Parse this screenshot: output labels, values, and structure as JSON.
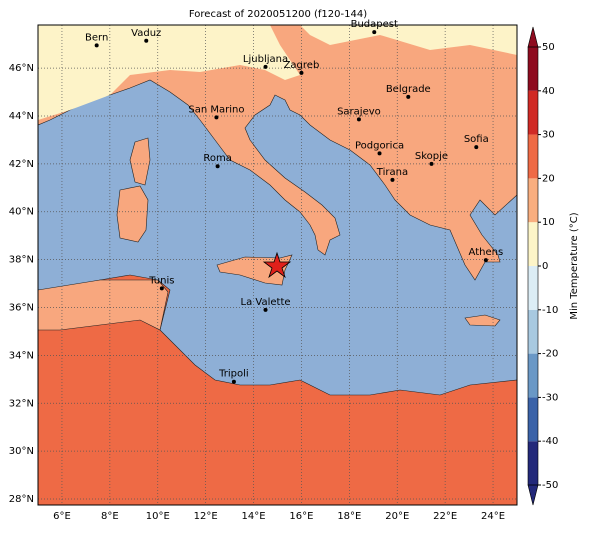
{
  "title": "Forecast of 2020051200 (f120-144)",
  "map": {
    "xlim": [
      5,
      25
    ],
    "ylim": [
      27.75,
      47.8
    ],
    "xticks": [
      {
        "value": 6,
        "label": "6°E"
      },
      {
        "value": 8,
        "label": "8°E"
      },
      {
        "value": 10,
        "label": "10°E"
      },
      {
        "value": 12,
        "label": "12°E"
      },
      {
        "value": 14,
        "label": "14°E"
      },
      {
        "value": 16,
        "label": "16°E"
      },
      {
        "value": 18,
        "label": "18°E"
      },
      {
        "value": 20,
        "label": "20°E"
      },
      {
        "value": 22,
        "label": "22°E"
      },
      {
        "value": 24,
        "label": "24°E"
      }
    ],
    "yticks": [
      {
        "value": 28,
        "label": "28°N"
      },
      {
        "value": 30,
        "label": "30°N"
      },
      {
        "value": 32,
        "label": "32°N"
      },
      {
        "value": 34,
        "label": "34°N"
      },
      {
        "value": 36,
        "label": "36°N"
      },
      {
        "value": 38,
        "label": "38°N"
      },
      {
        "value": 40,
        "label": "40°N"
      },
      {
        "value": 42,
        "label": "42°N"
      },
      {
        "value": 44,
        "label": "44°N"
      },
      {
        "value": 46,
        "label": "46°N"
      }
    ],
    "cities": [
      {
        "name": "Bern",
        "lon": 7.45,
        "lat": 46.95
      },
      {
        "name": "Vaduz",
        "lon": 9.52,
        "lat": 47.14
      },
      {
        "name": "Budapest",
        "lon": 19.04,
        "lat": 47.5
      },
      {
        "name": "Ljubljana",
        "lon": 14.5,
        "lat": 46.05
      },
      {
        "name": "Zagreb",
        "lon": 16.0,
        "lat": 45.8
      },
      {
        "name": "Belgrade",
        "lon": 20.46,
        "lat": 44.8
      },
      {
        "name": "San Marino",
        "lon": 12.45,
        "lat": 43.94
      },
      {
        "name": "Sarajevo",
        "lon": 18.4,
        "lat": 43.86
      },
      {
        "name": "Sofia",
        "lon": 23.3,
        "lat": 42.7
      },
      {
        "name": "Podgorica",
        "lon": 19.26,
        "lat": 42.44
      },
      {
        "name": "Skopje",
        "lon": 21.43,
        "lat": 42.0
      },
      {
        "name": "Roma",
        "lon": 12.5,
        "lat": 41.9
      },
      {
        "name": "Tirana",
        "lon": 19.8,
        "lat": 41.33
      },
      {
        "name": "Athens",
        "lon": 23.7,
        "lat": 37.98
      },
      {
        "name": "Tunis",
        "lon": 10.17,
        "lat": 36.8
      },
      {
        "name": "La Valette",
        "lon": 14.5,
        "lat": 35.9
      },
      {
        "name": "Tripoli",
        "lon": 13.18,
        "lat": 32.9
      }
    ]
  },
  "colorbar": {
    "label": "Min Temperature (°C)",
    "lim": [
      -50,
      50
    ],
    "ticks": [
      -50,
      -40,
      -30,
      -20,
      -10,
      0,
      10,
      20,
      30,
      40,
      50
    ],
    "colors": [
      "#23297a",
      "#3a62a8",
      "#6a98c6",
      "#a8c9e0",
      "#dcedf5",
      "#fdf5c8",
      "#f9ae7f",
      "#ef6a45",
      "#d02a25",
      "#8e0b1f"
    ]
  }
}
